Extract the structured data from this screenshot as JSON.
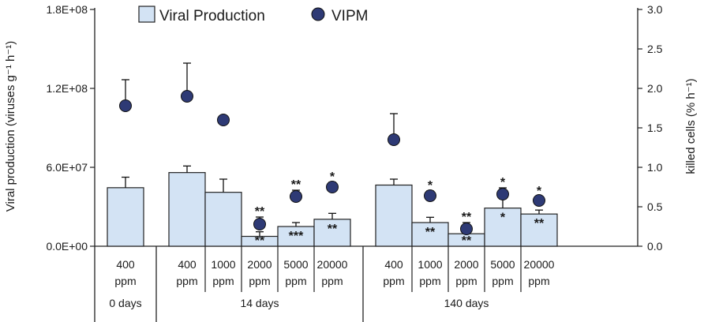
{
  "chart_data": {
    "type": "bar",
    "colors": {
      "bar_fill": "#d3e3f4",
      "bar_stroke": "#222222",
      "vipm_fill": "#2e3a75",
      "axis": "#222222"
    },
    "legend": {
      "position": "top-left",
      "bar_label": "Viral Production",
      "point_label": "VIPM"
    },
    "ylabel": "Viral production (viruses g⁻¹ h⁻¹)",
    "y2label": "killed cells  (% h⁻¹)",
    "ylim": [
      0,
      180000000
    ],
    "y2lim": [
      0,
      3.0
    ],
    "y_ticks": [
      {
        "value": 0,
        "label": "0.0E+00"
      },
      {
        "value": 60000000,
        "label": "6.0E+07"
      },
      {
        "value": 120000000,
        "label": "1.2E+08"
      },
      {
        "value": 180000000,
        "label": "1.8E+08"
      }
    ],
    "y2_ticks": [
      {
        "value": 0.0,
        "label": "0.0"
      },
      {
        "value": 0.5,
        "label": "0.5"
      },
      {
        "value": 1.0,
        "label": "1.0"
      },
      {
        "value": 1.5,
        "label": "1.5"
      },
      {
        "value": 2.0,
        "label": "2.0"
      },
      {
        "value": 2.5,
        "label": "2.5"
      },
      {
        "value": 3.0,
        "label": "3.0"
      }
    ],
    "groups": [
      {
        "label": "0 days",
        "categories": [
          {
            "conc": "400",
            "unit": "ppm",
            "vp": 44500000,
            "vp_err": 8000000,
            "vp_sig": "",
            "vipm": 1.78,
            "vipm_err": 0.33,
            "vipm_sig": ""
          }
        ]
      },
      {
        "label": "14 days",
        "categories": [
          {
            "conc": "400",
            "unit": "ppm",
            "vp": 56000000,
            "vp_err": 5000000,
            "vp_sig": "",
            "vipm": 1.9,
            "vipm_err": 0.42,
            "vipm_sig": ""
          },
          {
            "conc": "1000",
            "unit": "ppm",
            "vp": 41000000,
            "vp_err": 10000000,
            "vp_sig": "",
            "vipm": 1.6,
            "vipm_err": 0,
            "vipm_sig": ""
          },
          {
            "conc": "2000",
            "unit": "ppm",
            "vp": 7500000,
            "vp_err": 3500000,
            "vp_sig": "**",
            "vipm": 0.28,
            "vipm_err": 0.09,
            "vipm_sig": "**"
          },
          {
            "conc": "5000",
            "unit": "ppm",
            "vp": 15000000,
            "vp_err": 3000000,
            "vp_sig": "***",
            "vipm": 0.63,
            "vipm_err": 0.08,
            "vipm_sig": "**"
          },
          {
            "conc": "20000",
            "unit": "ppm",
            "vp": 20500000,
            "vp_err": 4500000,
            "vp_sig": "**",
            "vipm": 0.75,
            "vipm_err": 0.06,
            "vipm_sig": "*"
          }
        ]
      },
      {
        "label": "140 days",
        "categories": [
          {
            "conc": "400",
            "unit": "ppm",
            "vp": 46500000,
            "vp_err": 4500000,
            "vp_sig": "",
            "vipm": 1.35,
            "vipm_err": 0.33,
            "vipm_sig": ""
          },
          {
            "conc": "1000",
            "unit": "ppm",
            "vp": 18000000,
            "vp_err": 4000000,
            "vp_sig": "**",
            "vipm": 0.64,
            "vipm_err": 0.06,
            "vipm_sig": "*"
          },
          {
            "conc": "2000",
            "unit": "ppm",
            "vp": 9500000,
            "vp_err": 3000000,
            "vp_sig": "**",
            "vipm": 0.22,
            "vipm_err": 0.08,
            "vipm_sig": "**"
          },
          {
            "conc": "5000",
            "unit": "ppm",
            "vp": 29000000,
            "vp_err": 7000000,
            "vp_sig": "*",
            "vipm": 0.66,
            "vipm_err": 0.08,
            "vipm_sig": "*"
          },
          {
            "conc": "20000",
            "unit": "ppm",
            "vp": 24500000,
            "vp_err": 3000000,
            "vp_sig": "**",
            "vipm": 0.58,
            "vipm_err": 0.05,
            "vipm_sig": "*"
          }
        ]
      }
    ]
  }
}
